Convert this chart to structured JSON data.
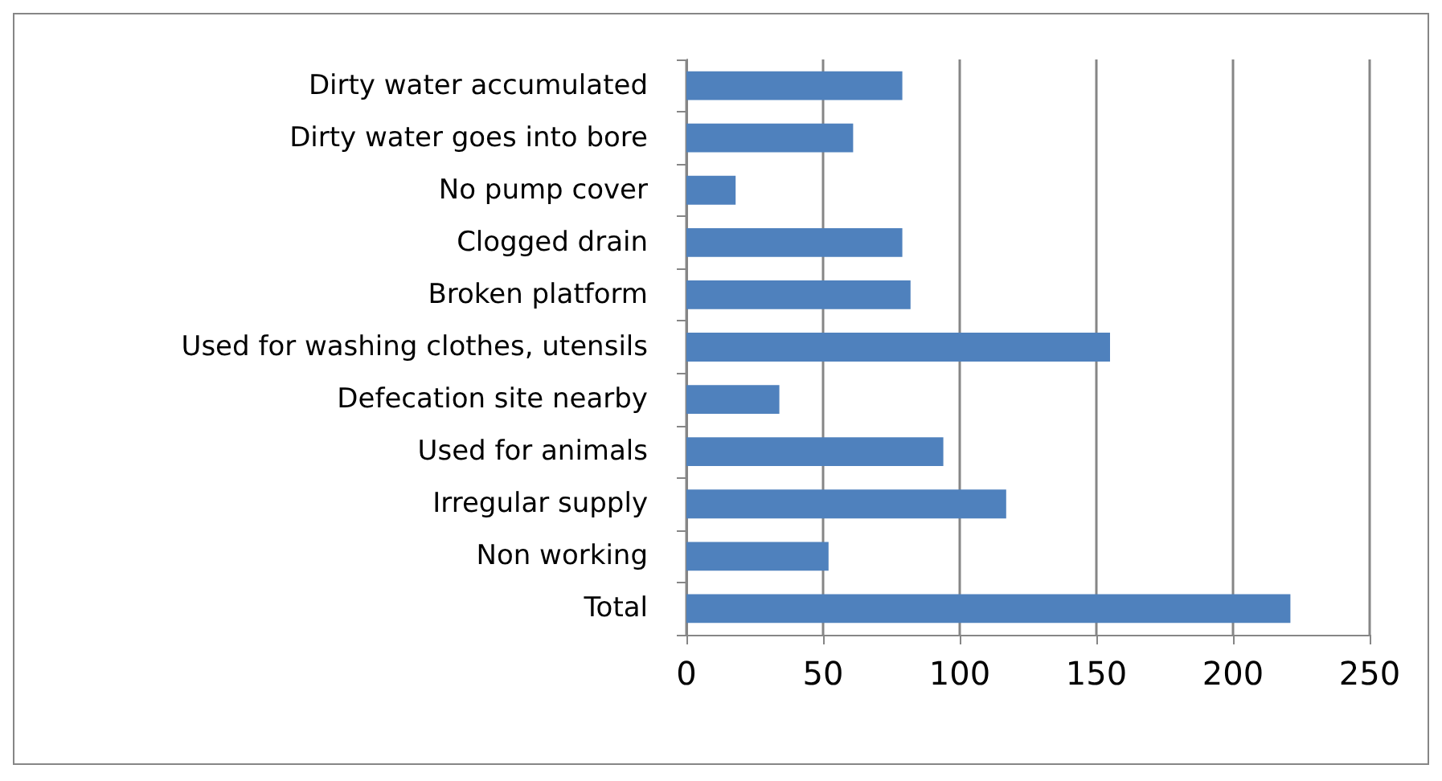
{
  "chart_data": {
    "type": "bar",
    "orientation": "horizontal",
    "categories": [
      "Dirty water accumulated",
      "Dirty water goes into bore",
      "No pump cover",
      "Clogged drain",
      "Broken platform",
      "Used for washing clothes, utensils",
      "Defecation site nearby",
      "Used for animals",
      "Irregular supply",
      "Non working",
      "Total"
    ],
    "values": [
      79,
      61,
      18,
      79,
      82,
      155,
      34,
      94,
      117,
      52,
      221
    ],
    "color": "#4f81bd",
    "xlim": [
      0,
      250
    ],
    "xticks": [
      0,
      50,
      100,
      150,
      200,
      250
    ],
    "grid": "x"
  }
}
